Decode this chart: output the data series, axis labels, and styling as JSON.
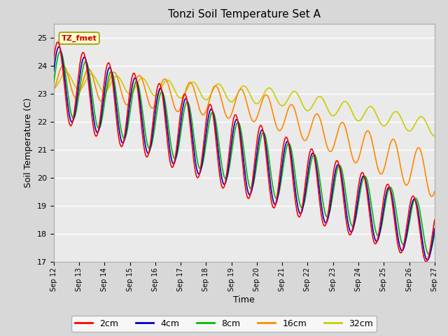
{
  "title": "Tonzi Soil Temperature Set A",
  "xlabel": "Time",
  "ylabel": "Soil Temperature (C)",
  "ylim": [
    17.0,
    25.5
  ],
  "yticks": [
    17.0,
    18.0,
    19.0,
    20.0,
    21.0,
    22.0,
    23.0,
    24.0,
    25.0
  ],
  "xtick_labels": [
    "Sep 12",
    "Sep 13",
    "Sep 14",
    "Sep 15",
    "Sep 16",
    "Sep 17",
    "Sep 18",
    "Sep 19",
    "Sep 20",
    "Sep 21",
    "Sep 22",
    "Sep 23",
    "Sep 24",
    "Sep 25",
    "Sep 26",
    "Sep 27"
  ],
  "colors": {
    "2cm": "#ff0000",
    "4cm": "#0000cc",
    "8cm": "#00bb00",
    "16cm": "#ff8800",
    "32cm": "#cccc00"
  },
  "linewidth": 1.2,
  "legend_label": "TZ_fmet",
  "fig_bg": "#d8d8d8",
  "plot_bg": "#eaeaea"
}
